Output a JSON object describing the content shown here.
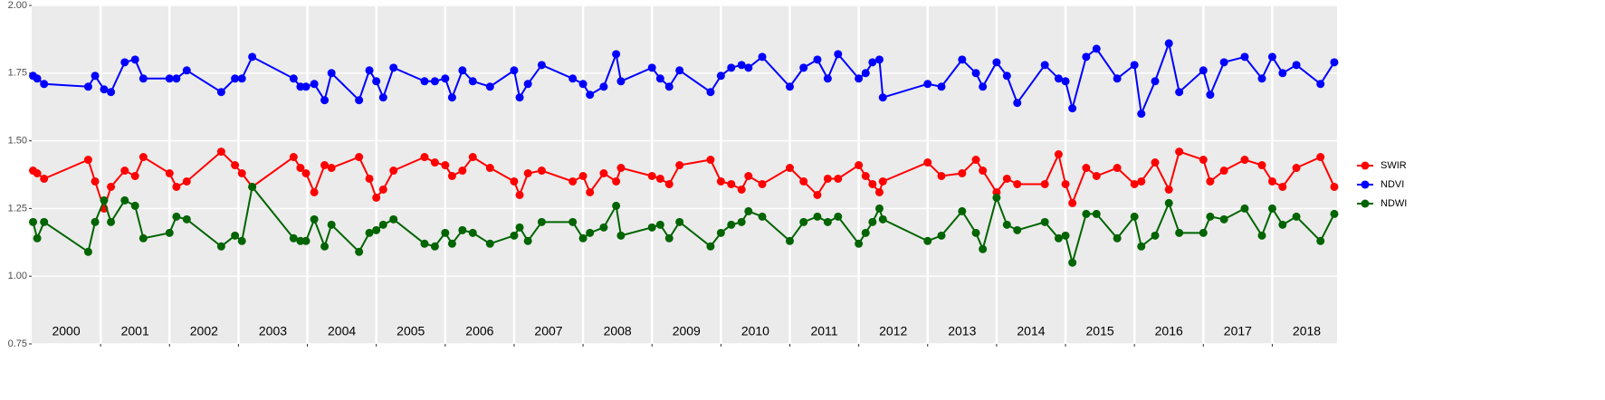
{
  "chart_data": {
    "type": "line",
    "x": [
      2000.02,
      2000.08,
      2000.18,
      2000.82,
      2000.92,
      2001.05,
      2001.15,
      2001.35,
      2001.5,
      2001.62,
      2002.0,
      2002.1,
      2002.25,
      2002.75,
      2002.95,
      2003.05,
      2003.2,
      2003.8,
      2003.9,
      2003.98,
      2004.1,
      2004.25,
      2004.35,
      2004.75,
      2004.9,
      2005.0,
      2005.1,
      2005.25,
      2005.7,
      2005.85,
      2006.0,
      2006.1,
      2006.25,
      2006.4,
      2006.65,
      2007.0,
      2007.08,
      2007.2,
      2007.4,
      2007.85,
      2008.0,
      2008.1,
      2008.3,
      2008.48,
      2008.55,
      2009.0,
      2009.12,
      2009.25,
      2009.4,
      2009.85,
      2010.0,
      2010.15,
      2010.3,
      2010.4,
      2010.6,
      2011.0,
      2011.2,
      2011.4,
      2011.55,
      2011.7,
      2012.0,
      2012.1,
      2012.2,
      2012.3,
      2012.35,
      2013.0,
      2013.2,
      2013.5,
      2013.7,
      2013.8,
      2014.0,
      2014.15,
      2014.3,
      2014.7,
      2014.9,
      2015.0,
      2015.1,
      2015.3,
      2015.45,
      2015.75,
      2016.0,
      2016.1,
      2016.3,
      2016.5,
      2016.65,
      2017.0,
      2017.1,
      2017.3,
      2017.6,
      2017.85,
      2018.0,
      2018.15,
      2018.35,
      2018.7,
      2018.9
    ],
    "series": [
      {
        "name": "SWIR",
        "color": "#ff0000",
        "values": [
          1.39,
          1.38,
          1.36,
          1.43,
          1.35,
          1.25,
          1.33,
          1.39,
          1.37,
          1.44,
          1.38,
          1.33,
          1.35,
          1.46,
          1.41,
          1.38,
          1.33,
          1.44,
          1.4,
          1.38,
          1.31,
          1.41,
          1.4,
          1.44,
          1.36,
          1.29,
          1.32,
          1.39,
          1.44,
          1.42,
          1.41,
          1.37,
          1.39,
          1.44,
          1.4,
          1.35,
          1.3,
          1.38,
          1.39,
          1.35,
          1.37,
          1.31,
          1.38,
          1.35,
          1.4,
          1.37,
          1.36,
          1.34,
          1.41,
          1.43,
          1.35,
          1.34,
          1.32,
          1.37,
          1.34,
          1.4,
          1.35,
          1.3,
          1.36,
          1.36,
          1.41,
          1.37,
          1.34,
          1.31,
          1.35,
          1.42,
          1.37,
          1.38,
          1.43,
          1.39,
          1.31,
          1.36,
          1.34,
          1.34,
          1.45,
          1.34,
          1.27,
          1.4,
          1.37,
          1.4,
          1.34,
          1.35,
          1.42,
          1.32,
          1.46,
          1.43,
          1.35,
          1.39,
          1.43,
          1.41,
          1.35,
          1.33,
          1.4,
          1.44,
          1.33
        ]
      },
      {
        "name": "NDVI",
        "color": "#0000ff",
        "values": [
          1.74,
          1.73,
          1.71,
          1.7,
          1.74,
          1.69,
          1.68,
          1.79,
          1.8,
          1.73,
          1.73,
          1.73,
          1.76,
          1.68,
          1.73,
          1.73,
          1.81,
          1.73,
          1.7,
          1.7,
          1.71,
          1.65,
          1.75,
          1.65,
          1.76,
          1.72,
          1.66,
          1.77,
          1.72,
          1.72,
          1.73,
          1.66,
          1.76,
          1.72,
          1.7,
          1.76,
          1.66,
          1.71,
          1.78,
          1.73,
          1.71,
          1.67,
          1.7,
          1.82,
          1.72,
          1.77,
          1.73,
          1.7,
          1.76,
          1.68,
          1.74,
          1.77,
          1.78,
          1.77,
          1.81,
          1.7,
          1.77,
          1.8,
          1.73,
          1.82,
          1.73,
          1.75,
          1.79,
          1.8,
          1.66,
          1.71,
          1.7,
          1.8,
          1.75,
          1.7,
          1.79,
          1.74,
          1.64,
          1.78,
          1.73,
          1.72,
          1.62,
          1.81,
          1.84,
          1.73,
          1.78,
          1.6,
          1.72,
          1.86,
          1.68,
          1.76,
          1.67,
          1.79,
          1.81,
          1.73,
          1.81,
          1.75,
          1.78,
          1.71,
          1.79
        ]
      },
      {
        "name": "NDWI",
        "color": "#006400",
        "values": [
          1.2,
          1.14,
          1.2,
          1.09,
          1.2,
          1.28,
          1.2,
          1.28,
          1.26,
          1.14,
          1.16,
          1.22,
          1.21,
          1.11,
          1.15,
          1.13,
          1.33,
          1.14,
          1.13,
          1.13,
          1.21,
          1.11,
          1.19,
          1.09,
          1.16,
          1.17,
          1.19,
          1.21,
          1.12,
          1.11,
          1.16,
          1.12,
          1.17,
          1.16,
          1.12,
          1.15,
          1.18,
          1.13,
          1.2,
          1.2,
          1.14,
          1.16,
          1.18,
          1.26,
          1.15,
          1.18,
          1.19,
          1.14,
          1.2,
          1.11,
          1.16,
          1.19,
          1.2,
          1.24,
          1.22,
          1.13,
          1.2,
          1.22,
          1.2,
          1.22,
          1.12,
          1.16,
          1.2,
          1.25,
          1.21,
          1.13,
          1.15,
          1.24,
          1.16,
          1.1,
          1.29,
          1.19,
          1.17,
          1.2,
          1.14,
          1.15,
          1.05,
          1.23,
          1.23,
          1.14,
          1.22,
          1.11,
          1.15,
          1.27,
          1.16,
          1.16,
          1.22,
          1.21,
          1.25,
          1.15,
          1.25,
          1.19,
          1.22,
          1.13,
          1.23
        ]
      }
    ],
    "xlim": [
      2000,
      2018.94
    ],
    "xticks": [
      {
        "value": 2000.5,
        "label": "2000"
      },
      {
        "value": 2001.5,
        "label": "2001"
      },
      {
        "value": 2002.5,
        "label": "2002"
      },
      {
        "value": 2003.5,
        "label": "2003"
      },
      {
        "value": 2004.5,
        "label": "2004"
      },
      {
        "value": 2005.5,
        "label": "2005"
      },
      {
        "value": 2006.5,
        "label": "2006"
      },
      {
        "value": 2007.5,
        "label": "2007"
      },
      {
        "value": 2008.5,
        "label": "2008"
      },
      {
        "value": 2009.5,
        "label": "2009"
      },
      {
        "value": 2010.5,
        "label": "2010"
      },
      {
        "value": 2011.5,
        "label": "2011"
      },
      {
        "value": 2012.5,
        "label": "2012"
      },
      {
        "value": 2013.5,
        "label": "2013"
      },
      {
        "value": 2014.5,
        "label": "2014"
      },
      {
        "value": 2015.5,
        "label": "2015"
      },
      {
        "value": 2016.5,
        "label": "2016"
      },
      {
        "value": 2017.5,
        "label": "2017"
      },
      {
        "value": 2018.5,
        "label": "2018"
      }
    ],
    "xgrid": [
      2001,
      2002,
      2003,
      2004,
      2005,
      2006,
      2007,
      2008,
      2009,
      2010,
      2011,
      2012,
      2013,
      2014,
      2015,
      2016,
      2017,
      2018
    ],
    "ylim": [
      0.75,
      2.0
    ],
    "yticks": [
      {
        "value": 0.75,
        "label": "0.75"
      },
      {
        "value": 1,
        "label": "1.00"
      },
      {
        "value": 1.25,
        "label": "1.25"
      },
      {
        "value": 1.5,
        "label": "1.50"
      },
      {
        "value": 1.75,
        "label": "1.75"
      },
      {
        "value": 2,
        "label": "2.00"
      }
    ],
    "grid": true,
    "legend": "right"
  }
}
